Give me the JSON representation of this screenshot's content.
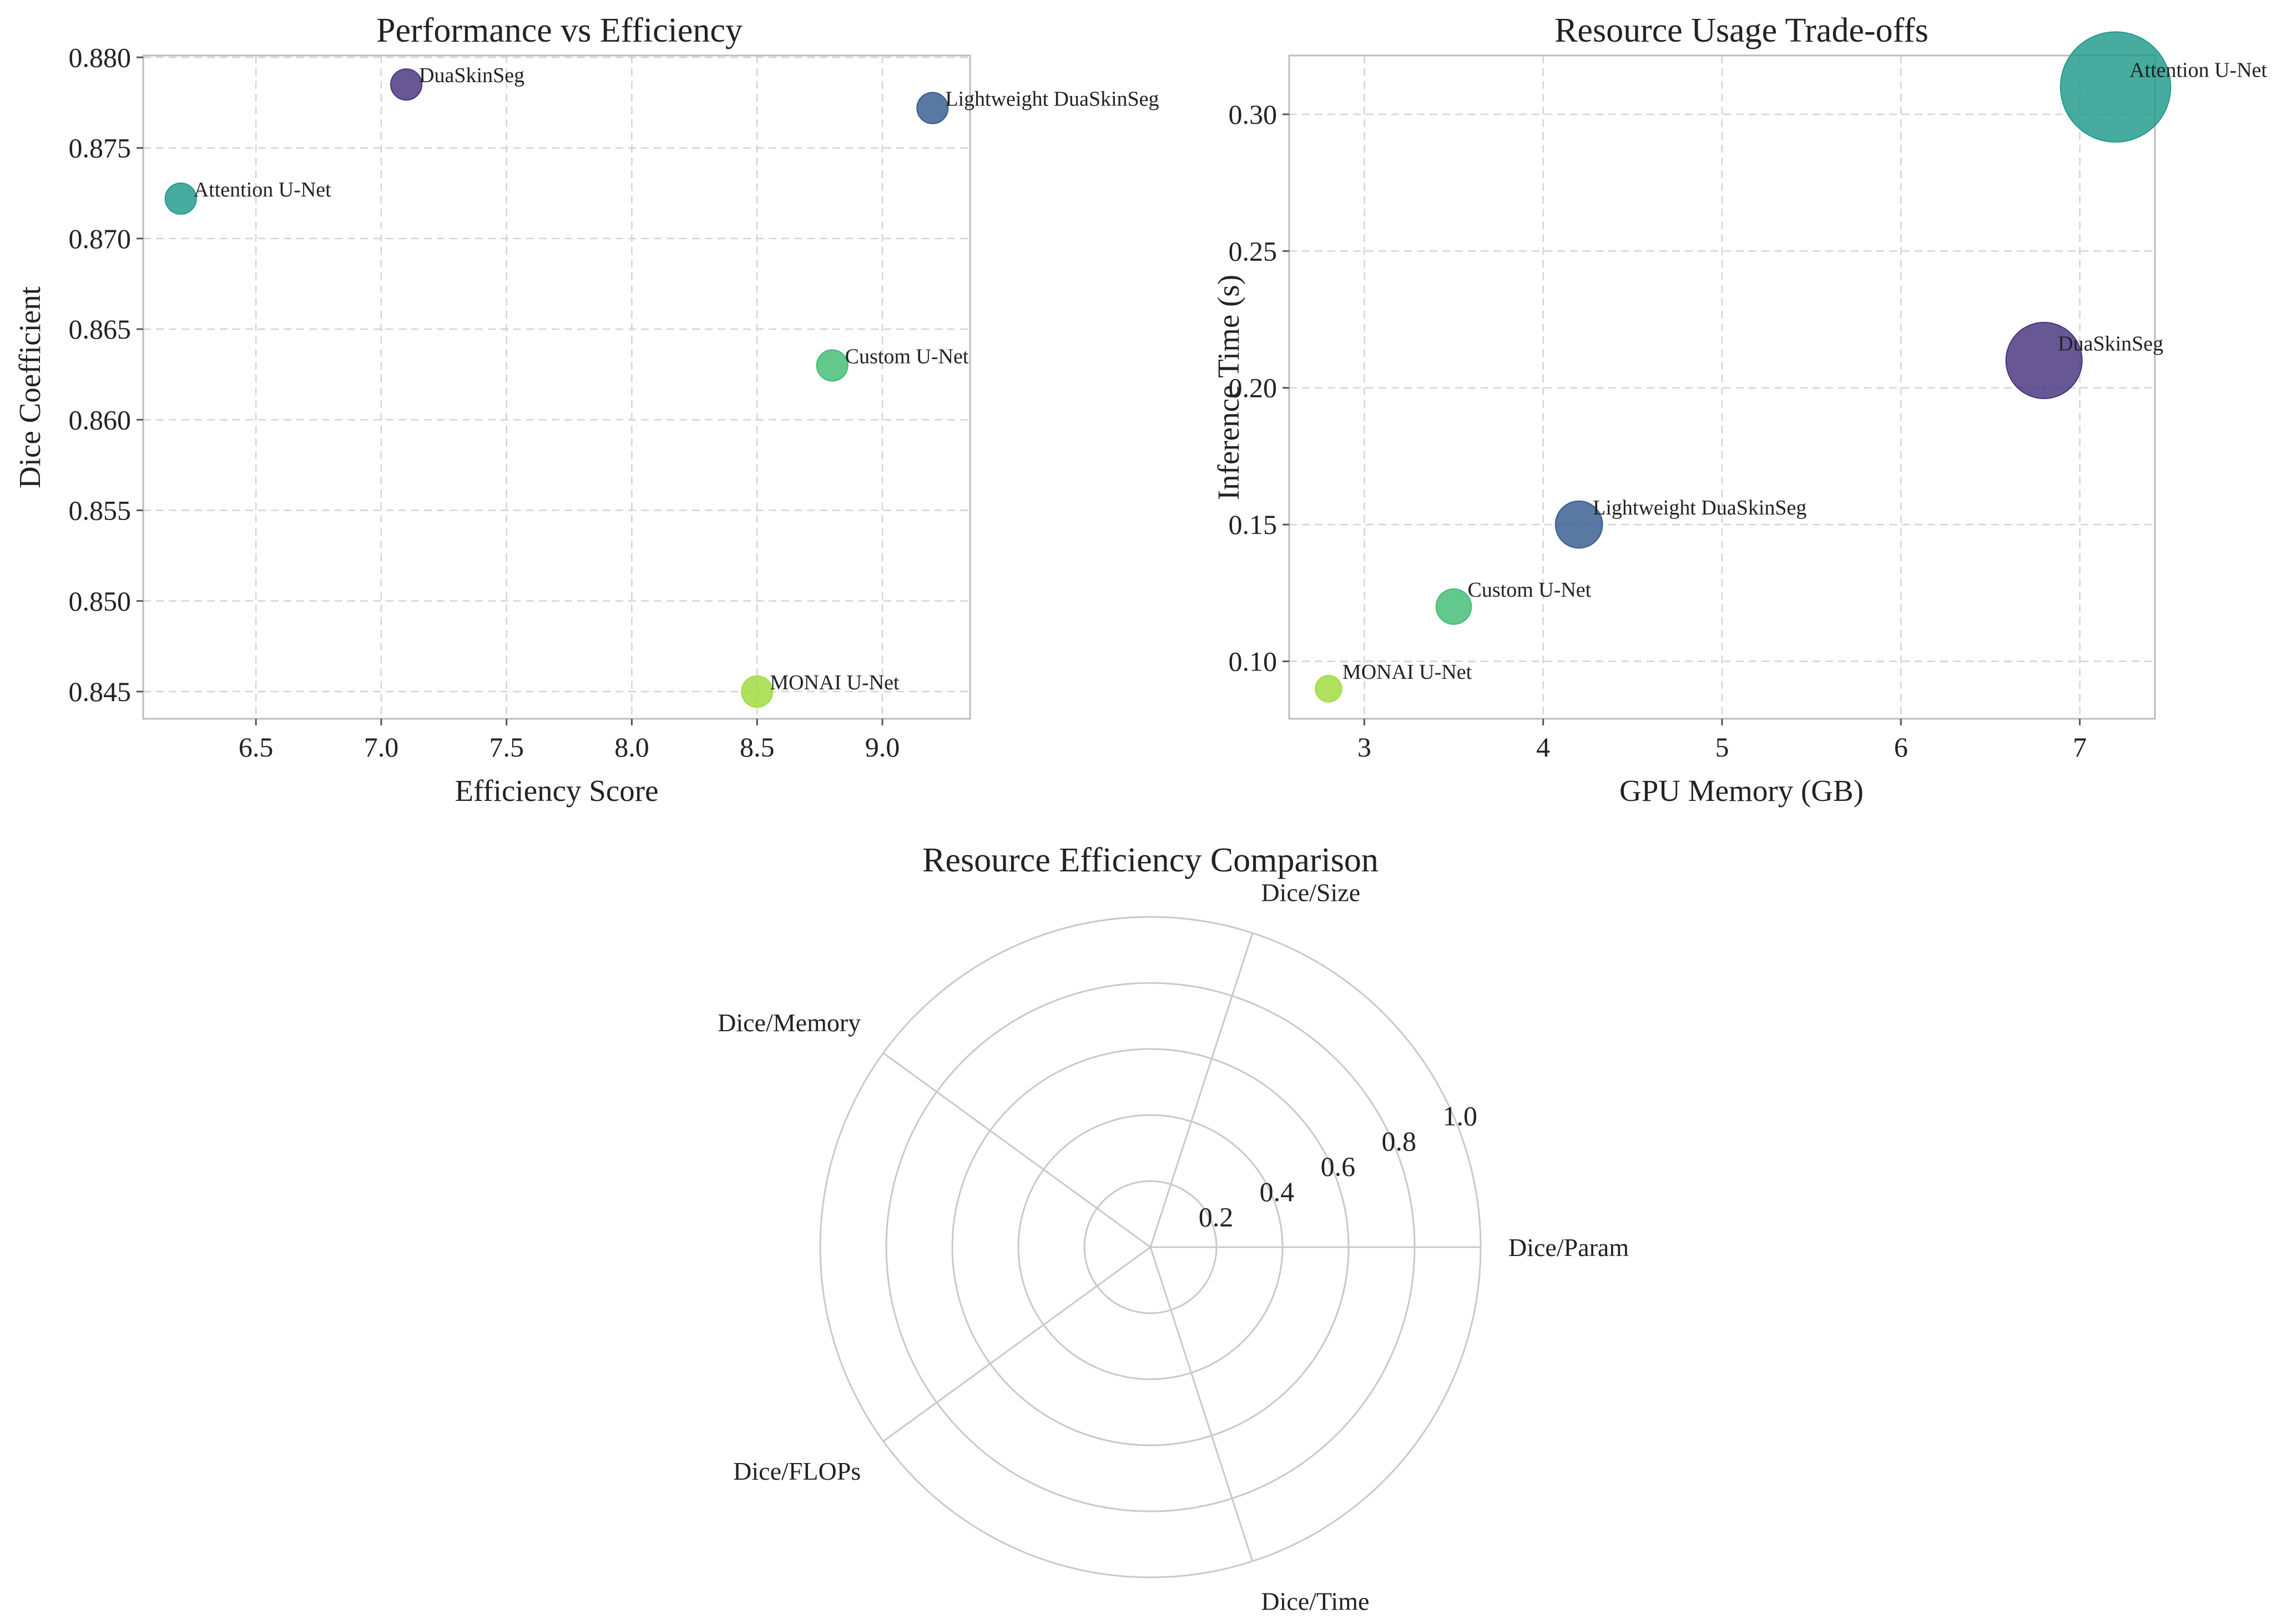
{
  "chart_data": [
    {
      "type": "scatter",
      "title": "Performance vs Efficiency",
      "xlabel": "Efficiency Score",
      "ylabel": "Dice Coefficient",
      "xlim": [
        6.05,
        9.35
      ],
      "ylim": [
        0.8435,
        0.8801
      ],
      "xticks": [
        "6.5",
        "7.0",
        "7.5",
        "8.0",
        "8.5",
        "9.0"
      ],
      "yticks": [
        "0.845",
        "0.850",
        "0.855",
        "0.860",
        "0.865",
        "0.870",
        "0.875",
        "0.880"
      ],
      "grid": true,
      "points": [
        {
          "label": "DuaSkinSeg",
          "x": 7.1,
          "y": 0.8785,
          "color": "#46337e"
        },
        {
          "label": "Lightweight DuaSkinSeg",
          "x": 9.2,
          "y": 0.8772,
          "color": "#365c8d"
        },
        {
          "label": "Attention U-Net",
          "x": 6.2,
          "y": 0.8722,
          "color": "#1f9a8a"
        },
        {
          "label": "Custom U-Net",
          "x": 8.8,
          "y": 0.863,
          "color": "#3fbc73"
        },
        {
          "label": "MONAI U-Net",
          "x": 8.5,
          "y": 0.845,
          "color": "#9fda3a"
        }
      ]
    },
    {
      "type": "scatter",
      "title": "Resource Usage Trade-offs",
      "xlabel": "GPU Memory (GB)",
      "ylabel": "Inference Time (s)",
      "xlim": [
        2.58,
        7.42
      ],
      "ylim": [
        0.079,
        0.3215
      ],
      "xticks": [
        "3",
        "4",
        "5",
        "6",
        "7"
      ],
      "yticks": [
        "0.10",
        "0.15",
        "0.20",
        "0.25",
        "0.30"
      ],
      "grid": true,
      "points": [
        {
          "label": "Attention U-Net",
          "x": 7.2,
          "y": 0.31,
          "size": 8.8,
          "color": "#1f9a8a"
        },
        {
          "label": "DuaSkinSeg",
          "x": 6.8,
          "y": 0.21,
          "size": 4.2,
          "color": "#46337e"
        },
        {
          "label": "Lightweight DuaSkinSeg",
          "x": 4.2,
          "y": 0.15,
          "size": 1.6,
          "color": "#365c8d"
        },
        {
          "label": "Custom U-Net",
          "x": 3.5,
          "y": 0.12,
          "size": 0.9,
          "color": "#3fbc73"
        },
        {
          "label": "MONAI U-Net",
          "x": 2.8,
          "y": 0.09,
          "size": 0.5,
          "color": "#9fda3a"
        }
      ]
    },
    {
      "type": "radar",
      "title": "Resource Efficiency Comparison",
      "categories": [
        "Dice/Param",
        "Dice/Size",
        "Dice/Memory",
        "Dice/FLOPs",
        "Dice/Time"
      ],
      "rticks": [
        "0.2",
        "0.4",
        "0.6",
        "0.8",
        "1.0"
      ],
      "rlim": [
        0,
        1.0
      ],
      "series": []
    }
  ]
}
